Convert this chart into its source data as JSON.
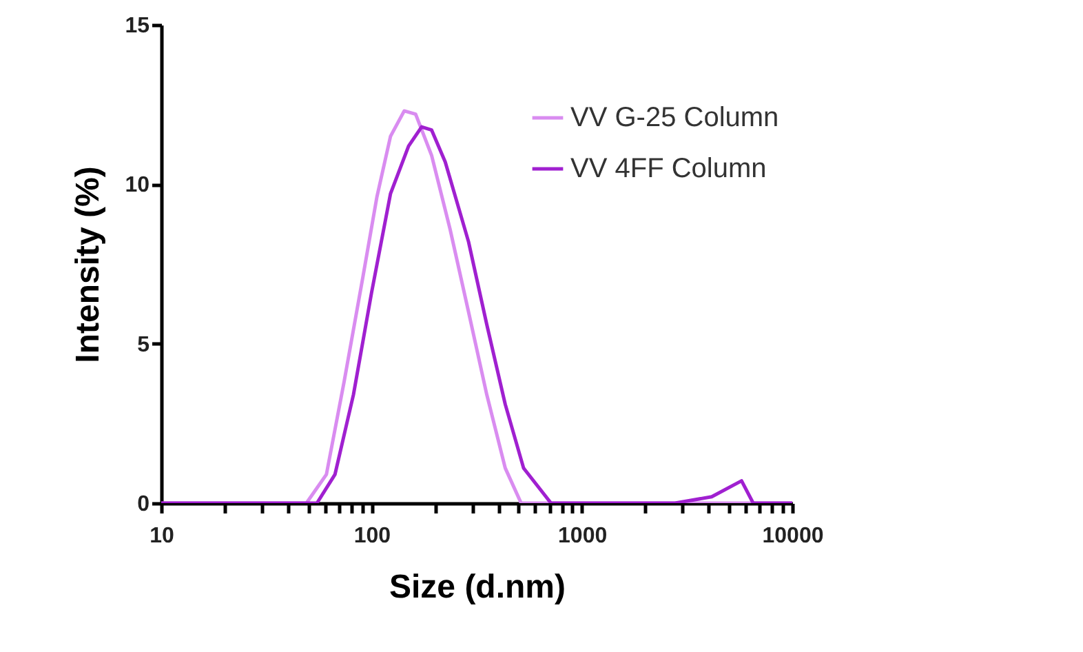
{
  "chart_data": {
    "type": "line",
    "xlabel": "Size (d.nm)",
    "ylabel": "Intensity (%)",
    "log": "x",
    "xlim": [
      10,
      10000
    ],
    "xticks": [
      10,
      {
        "value": 20,
        "label": null
      },
      {
        "value": 30,
        "label": null
      },
      {
        "value": 40,
        "label": null
      },
      {
        "value": 50,
        "label": null
      },
      {
        "value": 60,
        "label": null
      },
      {
        "value": 70,
        "label": null
      },
      {
        "value": 80,
        "label": null
      },
      {
        "value": 90,
        "label": null
      },
      100,
      {
        "value": 200,
        "label": null
      },
      {
        "value": 300,
        "label": null
      },
      {
        "value": 400,
        "label": null
      },
      {
        "value": 500,
        "label": null
      },
      {
        "value": 600,
        "label": null
      },
      {
        "value": 700,
        "label": null
      },
      {
        "value": 800,
        "label": null
      },
      {
        "value": 900,
        "label": null
      },
      1000,
      {
        "value": 2000,
        "label": null
      },
      {
        "value": 3000,
        "label": null
      },
      {
        "value": 4000,
        "label": null
      },
      {
        "value": 5000,
        "label": null
      },
      {
        "value": 6000,
        "label": null
      },
      {
        "value": 7000,
        "label": null
      },
      {
        "value": 8000,
        "label": null
      },
      {
        "value": 9000,
        "label": null
      },
      10000
    ],
    "ylim": [
      0,
      15
    ],
    "yticks": [
      0,
      5,
      10,
      15
    ],
    "grid": false,
    "legend": "top right",
    "marker": "none",
    "line_style": "solid",
    "series": [
      {
        "name": "VV G-25 Column",
        "color": "#d98cf0",
        "x": [
          10,
          49,
          61,
          74,
          91,
          106,
          123,
          143,
          162,
          193,
          236,
          289,
          353,
          432,
          514,
          10000
        ],
        "values": [
          0,
          0,
          0.9,
          3.8,
          7.1,
          9.6,
          11.5,
          12.3,
          12.2,
          10.9,
          8.6,
          6.0,
          3.4,
          1.1,
          0,
          0
        ]
      },
      {
        "name": "VV 4FF Column",
        "color": "#a020d0",
        "x": [
          10,
          55,
          67,
          82,
          100,
          123,
          150,
          173,
          193,
          224,
          289,
          353,
          432,
          528,
          713,
          2770,
          4140,
          5740,
          6520,
          10000
        ],
        "values": [
          0,
          0,
          0.9,
          3.4,
          6.6,
          9.7,
          11.2,
          11.8,
          11.7,
          10.7,
          8.2,
          5.6,
          3.1,
          1.1,
          0,
          0,
          0.2,
          0.7,
          0,
          0
        ]
      }
    ]
  }
}
